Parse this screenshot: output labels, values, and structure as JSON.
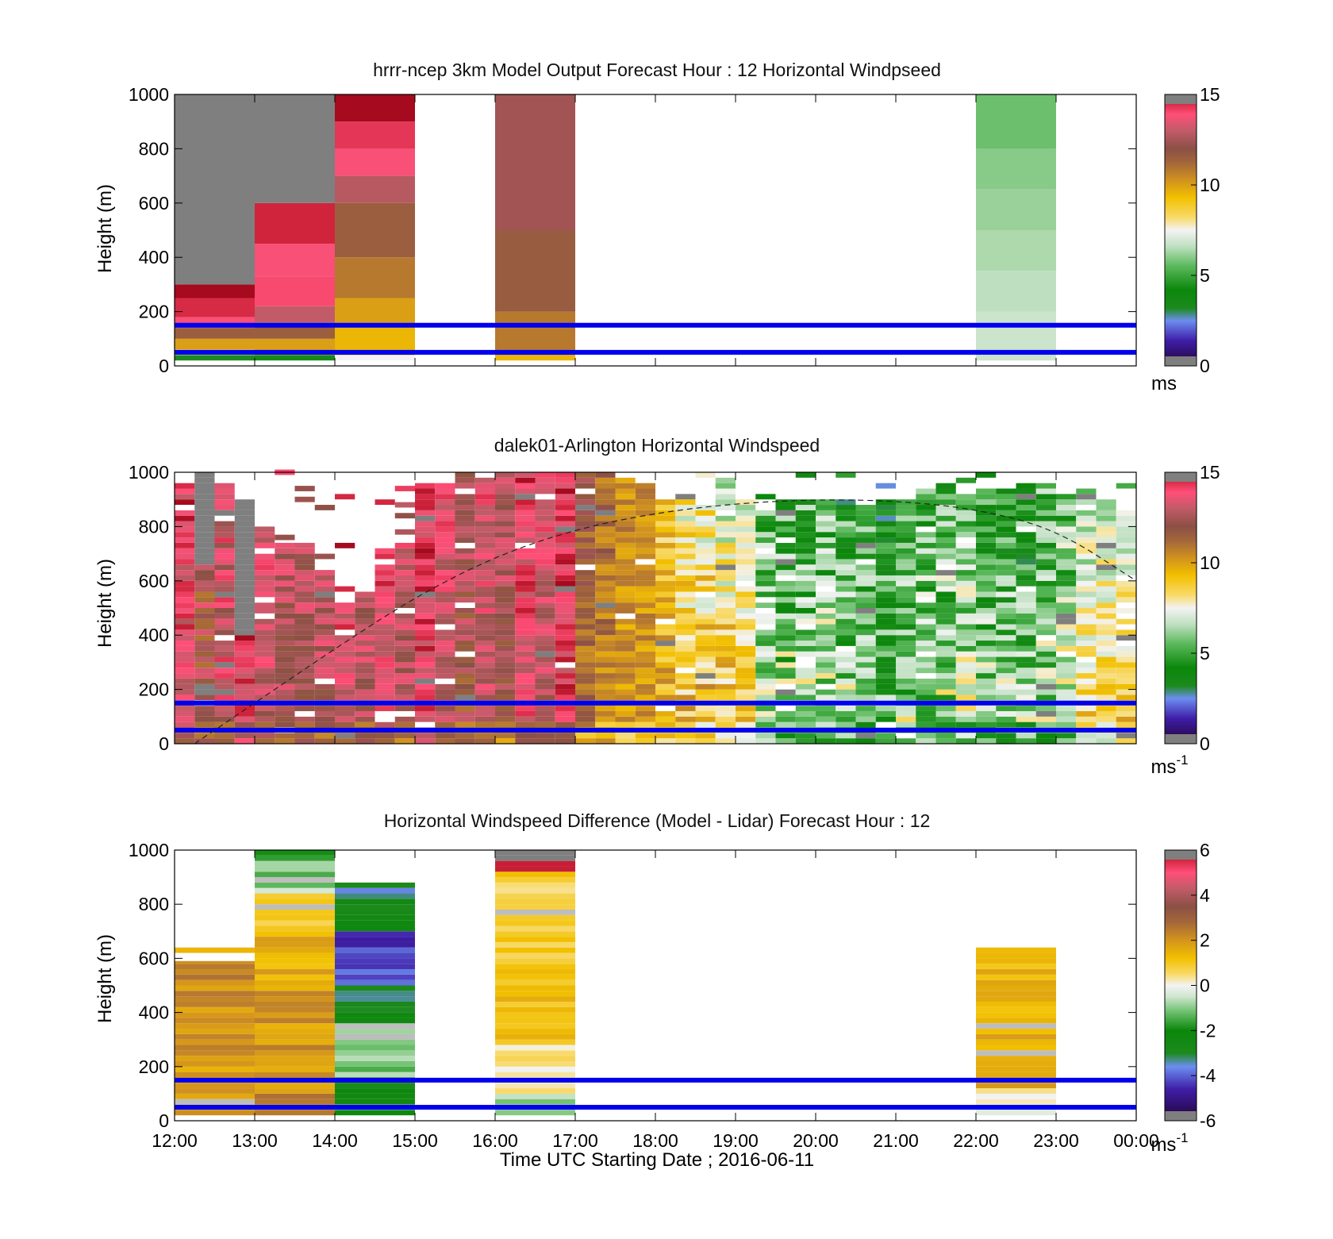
{
  "chart_data": [
    {
      "type": "heatmap",
      "title": "hrrr-ncep 3km Model Output   Forecast Hour : 12 Horizontal Windpseed",
      "ylabel": "Height (m)",
      "ylim": [
        0,
        1000
      ],
      "yticks": [
        "0",
        "200",
        "400",
        "600",
        "800",
        "1000"
      ],
      "xlim_hours": [
        12,
        24
      ],
      "colorbar": {
        "range": [
          0,
          15
        ],
        "ticks": [
          "0",
          "5",
          "10",
          "15"
        ],
        "unit": "ms"
      },
      "reference_heights_m": [
        50,
        150
      ],
      "columns": [
        {
          "start_hour": 12,
          "end_hour": 13,
          "segments": [
            {
              "from": 20,
              "to": 40,
              "value": 3.2
            },
            {
              "from": 40,
              "to": 60,
              "value": 8
            },
            {
              "from": 60,
              "to": 100,
              "value": 10
            },
            {
              "from": 100,
              "to": 140,
              "value": 11.5
            },
            {
              "from": 140,
              "to": 180,
              "value": 13.8
            },
            {
              "from": 180,
              "to": 250,
              "value": 14.5
            },
            {
              "from": 250,
              "to": 300,
              "value": 15
            },
            {
              "from": 300,
              "to": 1000,
              "value": null
            }
          ]
        },
        {
          "start_hour": 13,
          "end_hour": 14,
          "segments": [
            {
              "from": 20,
              "to": 40,
              "value": 3.5
            },
            {
              "from": 40,
              "to": 100,
              "value": 10
            },
            {
              "from": 100,
              "to": 160,
              "value": 11.5
            },
            {
              "from": 160,
              "to": 220,
              "value": 13
            },
            {
              "from": 220,
              "to": 330,
              "value": 14
            },
            {
              "from": 330,
              "to": 450,
              "value": 13.8
            },
            {
              "from": 450,
              "to": 600,
              "value": 14.6
            },
            {
              "from": 600,
              "to": 1000,
              "value": null
            }
          ]
        },
        {
          "start_hour": 14,
          "end_hour": 15,
          "segments": [
            {
              "from": 20,
              "to": 40,
              "value": 7.5
            },
            {
              "from": 40,
              "to": 150,
              "value": 9.5
            },
            {
              "from": 150,
              "to": 250,
              "value": 10
            },
            {
              "from": 250,
              "to": 400,
              "value": 10.8
            },
            {
              "from": 400,
              "to": 600,
              "value": 11.5
            },
            {
              "from": 600,
              "to": 700,
              "value": 12.8
            },
            {
              "from": 700,
              "to": 800,
              "value": 13.8
            },
            {
              "from": 800,
              "to": 900,
              "value": 14.3
            },
            {
              "from": 900,
              "to": 1000,
              "value": 15
            }
          ]
        },
        {
          "start_hour": 16,
          "end_hour": 17,
          "segments": [
            {
              "from": 20,
              "to": 40,
              "value": 9.5
            },
            {
              "from": 40,
              "to": 200,
              "value": 10.8
            },
            {
              "from": 200,
              "to": 500,
              "value": 11.6
            },
            {
              "from": 500,
              "to": 1000,
              "value": 12.4
            }
          ]
        },
        {
          "start_hour": 22,
          "end_hour": 23,
          "segments": [
            {
              "from": 20,
              "to": 200,
              "value": 6.8
            },
            {
              "from": 200,
              "to": 350,
              "value": 6.6
            },
            {
              "from": 350,
              "to": 500,
              "value": 6.4
            },
            {
              "from": 500,
              "to": 650,
              "value": 6.2
            },
            {
              "from": 650,
              "to": 800,
              "value": 6
            },
            {
              "from": 800,
              "to": 1000,
              "value": 5.7
            }
          ]
        }
      ]
    },
    {
      "type": "heatmap",
      "title": "dalek01-Arlington  Horizontal Windspeed",
      "ylabel": "Height (m)",
      "ylim": [
        0,
        1000
      ],
      "yticks": [
        "0",
        "200",
        "400",
        "600",
        "800",
        "1000"
      ],
      "xlim_hours": [
        12,
        24
      ],
      "colorbar": {
        "range": [
          0,
          15
        ],
        "ticks": [
          "0",
          "5",
          "10",
          "15"
        ],
        "unit": "ms",
        "unit_exp": "-1"
      },
      "reference_heights_m": [
        50,
        150
      ],
      "bin_width_hours": 0.25,
      "bin_height_m": 20,
      "curve": {
        "points": [
          [
            12.25,
            0
          ],
          [
            13,
            150
          ],
          [
            14,
            350
          ],
          [
            15,
            540
          ],
          [
            16,
            690
          ],
          [
            17,
            790
          ],
          [
            18,
            850
          ],
          [
            19,
            885
          ],
          [
            20,
            900
          ],
          [
            21,
            895
          ],
          [
            22,
            865
          ],
          [
            23,
            790
          ],
          [
            24,
            600
          ]
        ]
      },
      "profiles": [
        {
          "t": 12.0,
          "base": 13.5,
          "top": 0.5,
          "noise": 1.2,
          "cap": 950
        },
        {
          "t": 12.25,
          "base": 12,
          "top": 0.5,
          "noise": 1.5,
          "cap": 1000,
          "gray_above": 650
        },
        {
          "t": 12.5,
          "base": 13,
          "top": 0.5,
          "noise": 1.2,
          "cap": 950
        },
        {
          "t": 12.75,
          "base": 14,
          "top": 0.3,
          "noise": 1.2,
          "cap": 900,
          "gray_above": 390
        },
        {
          "t": 13.0,
          "base": 13,
          "top": 0.5,
          "noise": 1,
          "cap": 800,
          "gray_above": 800
        },
        {
          "t": 13.25,
          "base": 12.5,
          "top": 0.5,
          "noise": 1,
          "cap": 730,
          "gray_above": 730
        },
        {
          "t": 13.5,
          "base": 12.5,
          "top": 0.5,
          "noise": 1,
          "cap": 730,
          "gray_above": 730
        },
        {
          "t": 13.75,
          "base": 12.5,
          "top": 0.8,
          "noise": 1,
          "cap": 640,
          "gray_above": 640
        },
        {
          "t": 14.0,
          "base": 13.5,
          "top": 0.5,
          "noise": 1,
          "cap": 520,
          "gray_above": 520
        },
        {
          "t": 14.25,
          "base": 12.5,
          "top": 0.8,
          "noise": 1,
          "cap": 560,
          "gray_above": 560
        },
        {
          "t": 14.5,
          "base": 13.5,
          "top": 0.5,
          "noise": 1,
          "cap": 660,
          "gray_above": 660
        },
        {
          "t": 14.75,
          "base": 12.5,
          "top": 1,
          "noise": 1,
          "cap": 730,
          "gray_above": 730
        },
        {
          "t": 15.0,
          "base": 13.8,
          "top": 0.5,
          "noise": 1,
          "cap": 950
        },
        {
          "t": 15.25,
          "base": 12.8,
          "top": 0.8,
          "noise": 1,
          "cap": 950
        },
        {
          "t": 15.5,
          "base": 12,
          "top": 1,
          "noise": 1.2,
          "cap": 1000
        },
        {
          "t": 15.75,
          "base": 12.8,
          "top": 0.8,
          "noise": 1,
          "cap": 980
        },
        {
          "t": 16.0,
          "base": 12,
          "top": 1,
          "noise": 1,
          "cap": 1000
        },
        {
          "t": 16.25,
          "base": 13.5,
          "top": 0.5,
          "noise": 1,
          "cap": 1000
        },
        {
          "t": 16.5,
          "base": 12.5,
          "top": 1,
          "noise": 1,
          "cap": 1000
        },
        {
          "t": 16.75,
          "base": 13.8,
          "top": 0.5,
          "noise": 1,
          "cap": 1000
        },
        {
          "t": 17.0,
          "base": 11,
          "top": 0.8,
          "noise": 1,
          "cap": 1000
        },
        {
          "t": 17.25,
          "base": 10.5,
          "top": 0.8,
          "noise": 1,
          "cap": 1000
        },
        {
          "t": 17.5,
          "base": 10,
          "top": 0.5,
          "noise": 0.8,
          "cap": 980
        },
        {
          "t": 17.75,
          "base": 10,
          "top": 0.5,
          "noise": 0.8,
          "cap": 960
        },
        {
          "t": 18.0,
          "base": 9.8,
          "top": -1,
          "noise": 1.2,
          "cap": 900
        },
        {
          "t": 18.25,
          "base": 9.5,
          "top": -2,
          "noise": 1.5,
          "cap": 920
        },
        {
          "t": 18.5,
          "base": 9.5,
          "top": -2,
          "noise": 1.6,
          "cap": 900
        },
        {
          "t": 18.75,
          "base": 9.5,
          "top": -2.5,
          "noise": 1.6,
          "cap": 970
        },
        {
          "t": 19.0,
          "base": 9,
          "top": -2,
          "noise": 1.2,
          "cap": 900
        },
        {
          "t": 19.25,
          "base": 6.5,
          "top": -1,
          "noise": 1.6,
          "cap": 880
        },
        {
          "t": 19.5,
          "base": 6.5,
          "top": -1.5,
          "noise": 2,
          "cap": 900
        },
        {
          "t": 19.75,
          "base": 6.8,
          "top": -2,
          "noise": 1.8,
          "cap": 900
        },
        {
          "t": 20.0,
          "base": 6.8,
          "top": -1.5,
          "noise": 1.8,
          "cap": 900
        },
        {
          "t": 20.25,
          "base": 6.5,
          "top": -2,
          "noise": 2,
          "cap": 900
        },
        {
          "t": 20.5,
          "base": 6.8,
          "top": -2,
          "noise": 1.8,
          "cap": 880
        },
        {
          "t": 20.75,
          "base": 6,
          "top": -2,
          "noise": 2,
          "cap": 900
        },
        {
          "t": 21.0,
          "base": 6.5,
          "top": -2,
          "noise": 2,
          "cap": 900
        },
        {
          "t": 21.25,
          "base": 6.5,
          "top": -1.5,
          "noise": 2,
          "cap": 920
        },
        {
          "t": 21.5,
          "base": 6.5,
          "top": -1,
          "noise": 2,
          "cap": 960
        },
        {
          "t": 21.75,
          "base": 7,
          "top": -1.5,
          "noise": 1.8,
          "cap": 920
        },
        {
          "t": 22.0,
          "base": 6.5,
          "top": -2,
          "noise": 2,
          "cap": 920
        },
        {
          "t": 22.25,
          "base": 6.5,
          "top": -2,
          "noise": 2,
          "cap": 940
        },
        {
          "t": 22.5,
          "base": 6.2,
          "top": -2,
          "noise": 2,
          "cap": 960
        },
        {
          "t": 22.75,
          "base": 6.5,
          "top": -1.5,
          "noise": 2,
          "cap": 960
        },
        {
          "t": 23.0,
          "base": 7,
          "top": -1.5,
          "noise": 1.8,
          "cap": 920
        },
        {
          "t": 23.25,
          "base": 9,
          "top": -3,
          "noise": 1.2,
          "cap": 920
        },
        {
          "t": 23.5,
          "base": 9.2,
          "top": -3,
          "noise": 1.2,
          "cap": 900
        },
        {
          "t": 23.75,
          "base": 9.5,
          "top": -3.5,
          "noise": 1.2,
          "cap": 860
        }
      ]
    },
    {
      "type": "heatmap",
      "title": "Horizontal Windspeed Difference (Model - Lidar) Forecast Hour : 12",
      "ylabel": "Height (m)",
      "xlabel": "Time UTC  Starting Date ; 2016-06-11",
      "ylim": [
        0,
        1000
      ],
      "yticks": [
        "0",
        "200",
        "400",
        "600",
        "800",
        "1000"
      ],
      "xticks": [
        "12:00",
        "13:00",
        "14:00",
        "15:00",
        "16:00",
        "17:00",
        "18:00",
        "19:00",
        "20:00",
        "21:00",
        "22:00",
        "23:00",
        "00:00"
      ],
      "xlim_hours": [
        12,
        24
      ],
      "colorbar": {
        "range": [
          -6,
          6
        ],
        "ticks": [
          "-6",
          "-4",
          "-2",
          "0",
          "2",
          "4",
          "6"
        ],
        "unit": "ms",
        "unit_exp": "-1"
      },
      "reference_heights_m": [
        50,
        150
      ],
      "bin_height_m": 20,
      "profiles": [
        {
          "start_hour": 12,
          "end_hour": 13,
          "from": 20,
          "to": 590,
          "base": 1.8,
          "top": 2.5,
          "noise": 0.5,
          "extra": [
            {
              "from": 620,
              "to": 640,
              "value": 1.4
            }
          ]
        },
        {
          "start_hour": 13,
          "end_hour": 14,
          "from": 20,
          "to": 1000,
          "base": 2.2,
          "top": -1.8,
          "noise": 0.6,
          "breaks": [
            [
              0,
              700,
              2.2,
              1.5
            ],
            [
              700,
              830,
              1.4,
              0.3
            ],
            [
              830,
              1000,
              -0.5,
              -1.6
            ]
          ]
        },
        {
          "start_hour": 14,
          "end_hour": 15,
          "from": 20,
          "to": 880,
          "base": -2,
          "top": -2.8,
          "noise": 0.6,
          "breaks": [
            [
              0,
              150,
              -2.2,
              -2.5
            ],
            [
              150,
              350,
              -0.8,
              -1.4
            ],
            [
              350,
              500,
              -2.5,
              -3
            ],
            [
              500,
              700,
              -3.8,
              -4.2
            ],
            [
              700,
              880,
              -2.8,
              -3.2
            ]
          ]
        },
        {
          "start_hour": 16,
          "end_hour": 17,
          "from": 20,
          "to": 1000,
          "base": 0.3,
          "top": 1,
          "noise": 0.5,
          "breaks": [
            [
              0,
              100,
              -1,
              -0.5
            ],
            [
              100,
              300,
              0.2,
              0.6
            ],
            [
              300,
              920,
              1.2,
              0.8
            ],
            [
              920,
              1000,
              6,
              6
            ]
          ]
        },
        {
          "start_hour": 22,
          "end_hour": 23,
          "from": 20,
          "to": 640,
          "base": 0.2,
          "top": 1.4,
          "noise": 0.4,
          "breaks": [
            [
              0,
              120,
              -0.5,
              0.2
            ],
            [
              120,
              640,
              1.6,
              1.3
            ]
          ]
        }
      ]
    }
  ]
}
